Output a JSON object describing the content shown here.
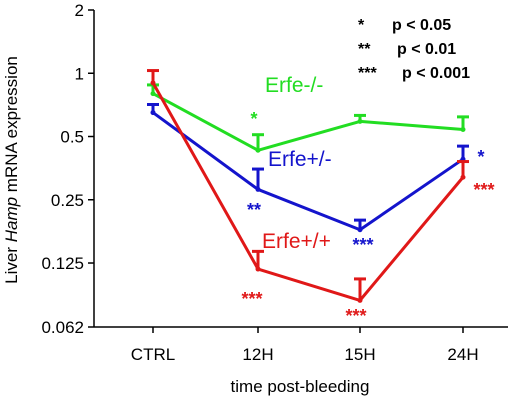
{
  "chart_data": {
    "type": "line",
    "xlabel": "time post-bleeding",
    "ylabel_parts": [
      "Liver ",
      "Hamp",
      " mRNA expression"
    ],
    "y_scale": "log2",
    "ylim": [
      0.062,
      2
    ],
    "yticks": [
      {
        "value": 2,
        "label": "2"
      },
      {
        "value": 1,
        "label": "1"
      },
      {
        "value": 0.5,
        "label": "0.5"
      },
      {
        "value": 0.25,
        "label": "0.25"
      },
      {
        "value": 0.125,
        "label": "0.125"
      },
      {
        "value": 0.062,
        "label": "0.062"
      }
    ],
    "categories": [
      "CTRL",
      "12H",
      "15H",
      "24H"
    ],
    "series": [
      {
        "name": "Erfe-/-",
        "color": "#22dd22",
        "values": [
          0.8,
          0.43,
          0.59,
          0.54
        ],
        "errors": [
          0.08,
          0.08,
          0.04,
          0.08
        ],
        "stars": [
          "",
          "*",
          "",
          ""
        ]
      },
      {
        "name": "Erfe+/-",
        "color": "#1414cc",
        "values": [
          0.65,
          0.28,
          0.18,
          0.39
        ],
        "errors": [
          0.06,
          0.07,
          0.02,
          0.06
        ],
        "stars": [
          "",
          "**",
          "***",
          "*"
        ]
      },
      {
        "name": "Erfe+/+",
        "color": "#e01818",
        "values": [
          0.9,
          0.117,
          0.083,
          0.32
        ],
        "errors": [
          0.13,
          0.025,
          0.022,
          0.06
        ],
        "stars": [
          "",
          "***",
          "***",
          "***"
        ]
      }
    ],
    "significance_legend": [
      {
        "stars": "*",
        "text": "p < 0.05"
      },
      {
        "stars": "**",
        "text": "p < 0.01"
      },
      {
        "stars": "***",
        "text": "p < 0.001"
      }
    ],
    "grid": false,
    "legend": "inline labels"
  }
}
